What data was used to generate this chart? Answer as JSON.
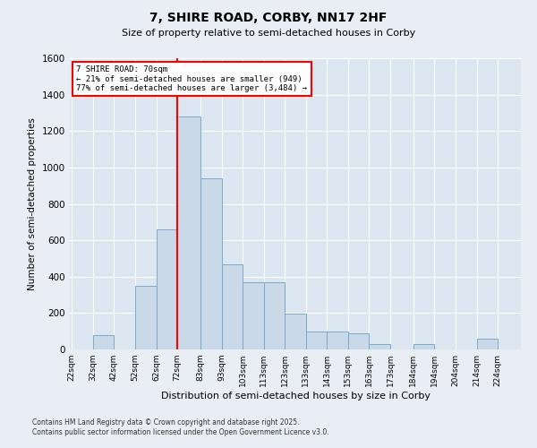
{
  "title": "7, SHIRE ROAD, CORBY, NN17 2HF",
  "subtitle": "Size of property relative to semi-detached houses in Corby",
  "xlabel": "Distribution of semi-detached houses by size in Corby",
  "ylabel": "Number of semi-detached properties",
  "bins": [
    "22sqm",
    "32sqm",
    "42sqm",
    "52sqm",
    "62sqm",
    "72sqm",
    "83sqm",
    "93sqm",
    "103sqm",
    "113sqm",
    "123sqm",
    "133sqm",
    "143sqm",
    "153sqm",
    "163sqm",
    "173sqm",
    "184sqm",
    "194sqm",
    "204sqm",
    "214sqm",
    "224sqm"
  ],
  "bin_edges": [
    22,
    32,
    42,
    52,
    62,
    72,
    83,
    93,
    103,
    113,
    123,
    133,
    143,
    153,
    163,
    173,
    184,
    194,
    204,
    214,
    224
  ],
  "values": [
    0,
    80,
    0,
    350,
    660,
    1280,
    940,
    470,
    370,
    370,
    195,
    100,
    100,
    90,
    30,
    0,
    30,
    0,
    0,
    60,
    0
  ],
  "bar_color": "#cad9e8",
  "bar_edge_color": "#7aaac8",
  "property_line_x": 72,
  "property_label": "7 SHIRE ROAD: 70sqm",
  "annotation_smaller": "← 21% of semi-detached houses are smaller (949)",
  "annotation_larger": "77% of semi-detached houses are larger (3,484) →",
  "ylim": [
    0,
    1600
  ],
  "yticks": [
    0,
    200,
    400,
    600,
    800,
    1000,
    1200,
    1400,
    1600
  ],
  "footnote1": "Contains HM Land Registry data © Crown copyright and database right 2025.",
  "footnote2": "Contains public sector information licensed under the Open Government Licence v3.0.",
  "bg_color": "#e8eef4",
  "plot_bg_color": "#dce6f0"
}
